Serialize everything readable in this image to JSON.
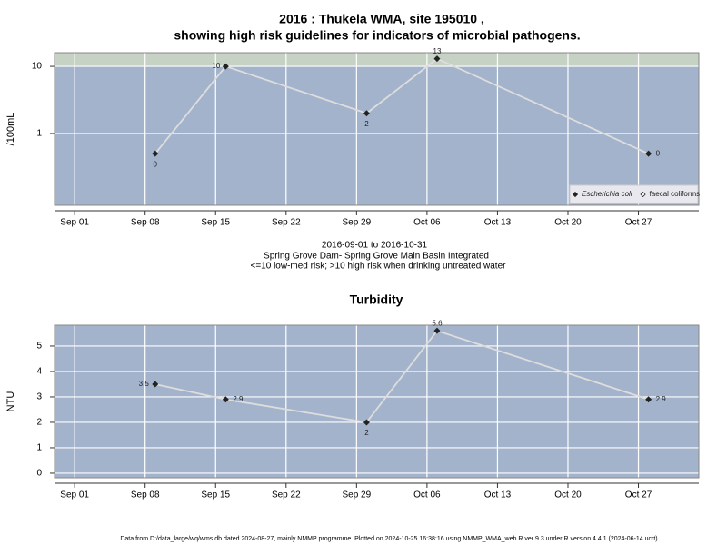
{
  "title": [
    "2016 : Thukela WMA, site 195010 ,",
    "showing high risk guidelines for indicators of microbial pathogens."
  ],
  "notes": [
    "2016-09-01 to 2016-10-31",
    "Spring Grove Dam- Spring Grove Main Basin Integrated",
    "<=10 low-med risk; >10 high risk when drinking untreated water"
  ],
  "footer": "Data from D:/data_large/wq/wms.db dated 2024-08-27, mainly NMMP programme. Plotted on 2024-10-25 16:38:16 using NMMP_WMA_web.R ver 9.3 under R version 4.4.1 (2024-06-14 ucrt)",
  "chart_data": [
    {
      "type": "line",
      "y_label": "/100mL",
      "log_scale": true,
      "grid": true,
      "legend": "bottom-right",
      "background": "#a3b3cc",
      "band_color": "#c6d2c4",
      "high_risk_threshold": 10,
      "x": [
        "Sep 09",
        "Sep 16",
        "Sep 30",
        "Oct 07",
        "Oct 28"
      ],
      "xlim": [
        "Aug 30",
        "Nov 02"
      ],
      "xticks": [
        "Sep 01",
        "Sep 08",
        "Sep 15",
        "Sep 22",
        "Sep 29",
        "Oct 06",
        "Oct 13",
        "Oct 20",
        "Oct 27"
      ],
      "ylim": [
        0.085,
        16
      ],
      "yticks": [
        1,
        10
      ],
      "series": [
        {
          "name": "Escherichia coli",
          "color": "#222222",
          "line_color": "#dddddd",
          "values": [
            0.5,
            10,
            2,
            13,
            0.5
          ],
          "value_labels": [
            "0",
            "10",
            "2",
            "13",
            "0"
          ]
        },
        {
          "name": "faecal coliforms",
          "color": "#222222",
          "line_color": "#dddddd",
          "values": [
            null,
            null,
            null,
            null,
            null
          ]
        }
      ]
    },
    {
      "type": "line",
      "title": "Turbidity",
      "y_label": "NTU",
      "grid": true,
      "background": "#a3b3cc",
      "x": [
        "Sep 09",
        "Sep 16",
        "Sep 30",
        "Oct 07",
        "Oct 28"
      ],
      "xlim": [
        "Aug 30",
        "Nov 02"
      ],
      "xticks": [
        "Sep 01",
        "Sep 08",
        "Sep 15",
        "Sep 22",
        "Sep 29",
        "Oct 06",
        "Oct 13",
        "Oct 20",
        "Oct 27"
      ],
      "ylim": [
        -0.18,
        5.82
      ],
      "yticks": [
        0,
        1,
        2,
        3,
        4,
        5
      ],
      "series": [
        {
          "color": "#222222",
          "line_color": "#dddddd",
          "values": [
            3.5,
            2.9,
            2,
            5.6,
            2.9
          ]
        }
      ]
    }
  ]
}
